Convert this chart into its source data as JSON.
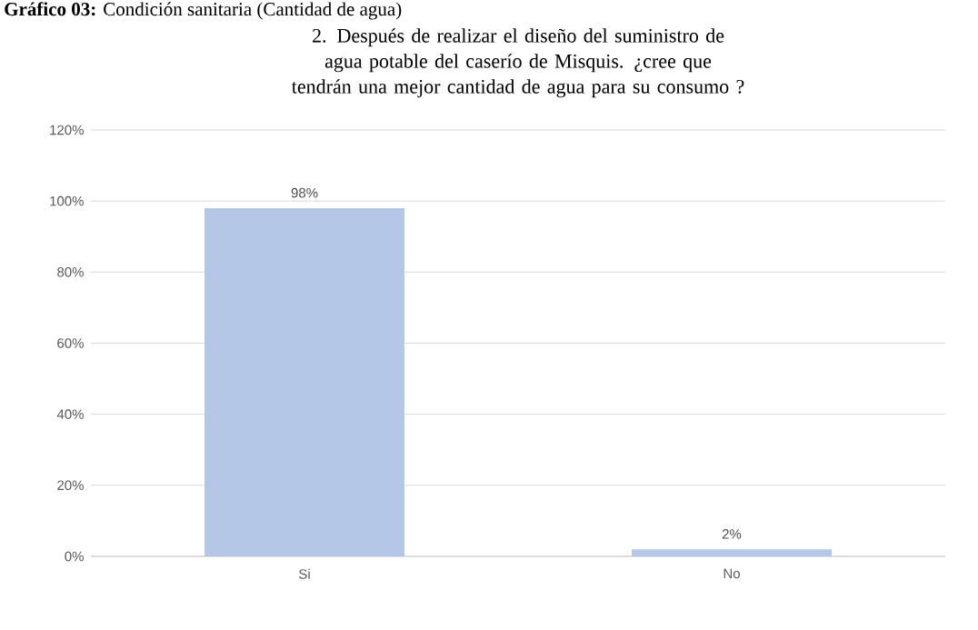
{
  "chart_data": {
    "type": "bar",
    "title": "2. Después de realizar  el diseño del suministro de agua potable del caserío de Misquis. ¿cree que tendrán una mejor cantidad de agua para su consumo ?",
    "annotations": [
      "**Gráfico 03:** Condición sanitaria (Cantidad de agua)"
    ],
    "categories": [
      "Si",
      "No"
    ],
    "values": [
      98,
      2
    ],
    "color": "#b4c7e7",
    "value_labels": [
      "98%",
      "2%"
    ],
    "ylim": [
      0,
      120
    ],
    "yticks": [
      {
        "value": 0,
        "label": "0%"
      },
      {
        "value": 20,
        "label": "20%"
      },
      {
        "value": 40,
        "label": "40%"
      },
      {
        "value": 60,
        "label": "60%"
      },
      {
        "value": 80,
        "label": "80%"
      },
      {
        "value": 100,
        "label": "100%"
      },
      {
        "value": 120,
        "label": "120%"
      }
    ],
    "grid": "y"
  }
}
